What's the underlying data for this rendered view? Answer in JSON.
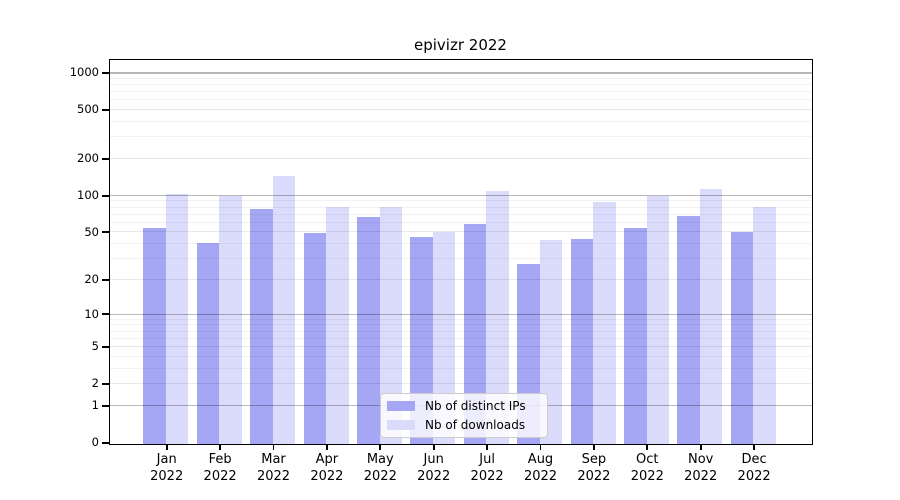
{
  "chart_data": {
    "type": "bar",
    "title": "epivizr 2022",
    "scale": "log10(value+1)",
    "ylim": [
      0,
      1280
    ],
    "grid": "horizontal log gridlines, darker at powers of 10",
    "legend_position": "lower center",
    "y_ticks": [
      "0",
      "1",
      "2",
      "5",
      "10",
      "20",
      "50",
      "100",
      "200",
      "500",
      "1000"
    ],
    "categories": [
      "Jan 2022",
      "Feb 2022",
      "Mar 2022",
      "Apr 2022",
      "May 2022",
      "Jun 2022",
      "Jul 2022",
      "Aug 2022",
      "Sep 2022",
      "Oct 2022",
      "Nov 2022",
      "Dec 2022"
    ],
    "series": [
      {
        "name": "Nb of distinct IPs",
        "color": "#a5a7f4",
        "values": [
          56,
          42,
          80,
          50,
          68,
          47,
          60,
          28,
          45,
          56,
          70,
          51
        ]
      },
      {
        "name": "Nb of downloads",
        "color": "#dbdcfb",
        "values": [
          106,
          101,
          147,
          83,
          83,
          51,
          112,
          44,
          90,
          102,
          115,
          83
        ]
      }
    ]
  }
}
